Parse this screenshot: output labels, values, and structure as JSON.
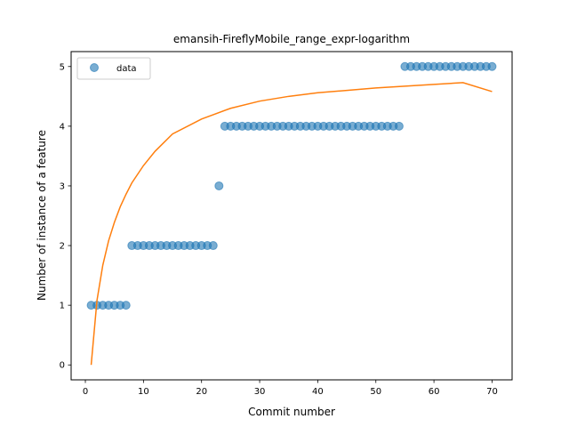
{
  "chart_data": {
    "type": "scatter",
    "title": "emansih-FireflyMobile_range_expr-logarithm",
    "xlabel": "Commit number",
    "ylabel": "Number of instance of a feature",
    "xlim": [
      -2.45,
      73.45
    ],
    "ylim": [
      -0.25,
      5.25
    ],
    "xticks": [
      0,
      10,
      20,
      30,
      40,
      50,
      60,
      70
    ],
    "yticks": [
      0,
      1,
      2,
      3,
      4,
      5
    ],
    "grid": false,
    "legend": {
      "placement": "upper-left",
      "entries": [
        "data"
      ]
    },
    "colors": {
      "data": "#1f77b4",
      "fit": "#ff7f0e"
    },
    "series": [
      {
        "name": "data",
        "kind": "scatter",
        "x": [
          1,
          2,
          3,
          4,
          5,
          6,
          7,
          8,
          9,
          10,
          11,
          12,
          13,
          14,
          15,
          16,
          17,
          18,
          19,
          20,
          21,
          22,
          23,
          24,
          25,
          26,
          27,
          28,
          29,
          30,
          31,
          32,
          33,
          34,
          35,
          36,
          37,
          38,
          39,
          40,
          41,
          42,
          43,
          44,
          45,
          46,
          47,
          48,
          49,
          50,
          51,
          52,
          53,
          54,
          55,
          56,
          57,
          58,
          59,
          60,
          61,
          62,
          63,
          64,
          65,
          66,
          67,
          68,
          69,
          70
        ],
        "y": [
          1,
          1,
          1,
          1,
          1,
          1,
          1,
          2,
          2,
          2,
          2,
          2,
          2,
          2,
          2,
          2,
          2,
          2,
          2,
          2,
          2,
          2,
          3,
          4,
          4,
          4,
          4,
          4,
          4,
          4,
          4,
          4,
          4,
          4,
          4,
          4,
          4,
          4,
          4,
          4,
          4,
          4,
          4,
          4,
          4,
          4,
          4,
          4,
          4,
          4,
          4,
          4,
          4,
          4,
          5,
          5,
          5,
          5,
          5,
          5,
          5,
          5,
          5,
          5,
          5,
          5,
          5,
          5,
          5,
          5
        ]
      },
      {
        "kind": "line",
        "x": [
          1,
          2,
          3,
          4,
          5,
          6,
          7,
          8,
          10,
          12,
          15,
          20,
          25,
          30,
          35,
          40,
          45,
          50,
          55,
          60,
          65,
          70
        ],
        "y": [
          0,
          1.08,
          1.67,
          2.08,
          2.39,
          2.65,
          2.86,
          3.05,
          3.34,
          3.58,
          3.87,
          4.12,
          4.3,
          4.42,
          4.5,
          4.56,
          4.6,
          4.64,
          4.67,
          4.7,
          4.73,
          4.58
        ]
      }
    ]
  }
}
